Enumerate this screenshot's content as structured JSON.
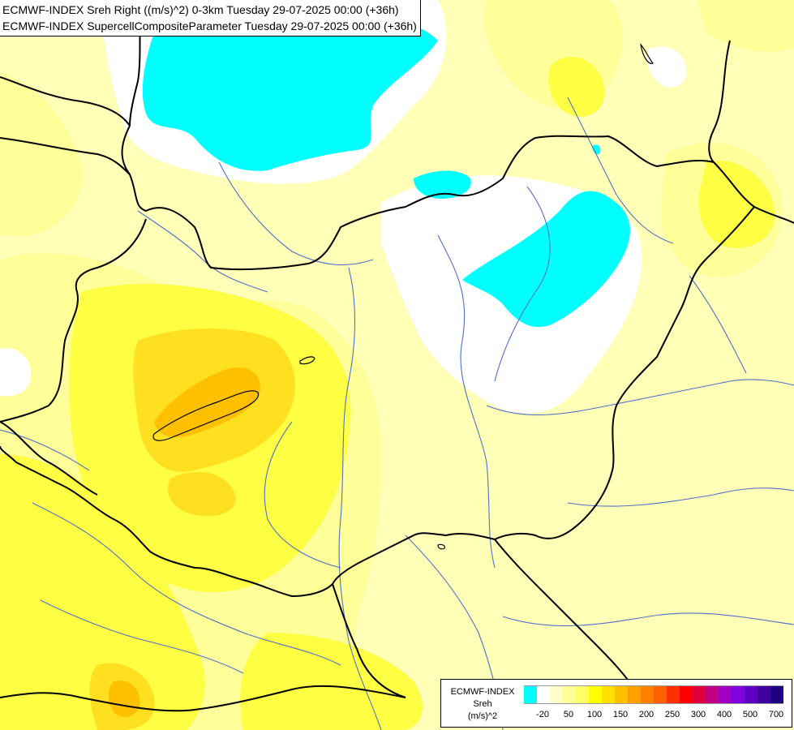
{
  "header": {
    "line1": "ECMWF-INDEX Sreh Right ((m/s)^2) 0-3km Tuesday 29-07-2025 00:00 (+36h)",
    "line2": "ECMWF-INDEX SupercellCompositeParameter Tuesday 29-07-2025 00:00 (+36h)"
  },
  "legend": {
    "title1": "ECMWF-INDEX",
    "title2": "Sreh",
    "unit": "(m/s)^2",
    "colors": [
      "#00ffff",
      "#ffffff",
      "#ffffcc",
      "#ffff99",
      "#ffff66",
      "#ffff00",
      "#ffe000",
      "#ffc000",
      "#ffa000",
      "#ff8000",
      "#ff6000",
      "#ff3000",
      "#ff0000",
      "#e00040",
      "#c00080",
      "#a000c0",
      "#8000e0",
      "#6000c0",
      "#4000a0",
      "#200080"
    ],
    "ticks": [
      "-20",
      "50",
      "100",
      "150",
      "200",
      "250",
      "300",
      "400",
      "500",
      "700"
    ]
  },
  "map": {
    "colors": {
      "pale": "#ffffb8",
      "light": "#ffff99",
      "yellow": "#ffff44",
      "gold": "#ffe020",
      "orange": "#ffc000",
      "deep": "#ffa000",
      "white": "#ffffff",
      "cyan": "#00ffff",
      "border": "#000000",
      "river": "#5070c8"
    }
  }
}
